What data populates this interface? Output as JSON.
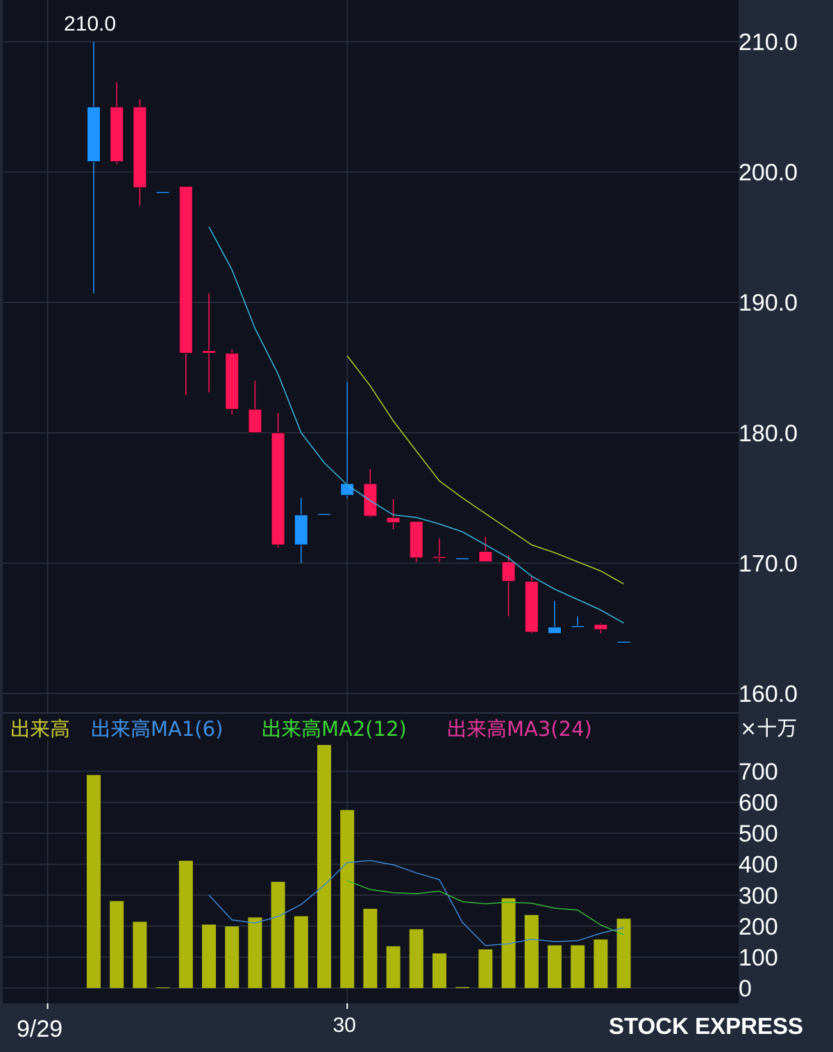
{
  "chart_data": {
    "type": "candlestick",
    "price_axis": {
      "min": 160,
      "max": 210,
      "ticks": [
        210,
        200,
        190,
        180,
        170,
        160
      ],
      "tick_labels": [
        "210.0",
        "200.0",
        "190.0",
        "180.0",
        "170.0",
        "160.0"
      ]
    },
    "high_label": "210.0",
    "x_labels": [
      {
        "index": -2,
        "label": "9/29"
      },
      {
        "index": 11,
        "label": "30"
      }
    ],
    "candles": [
      {
        "o": 200.8,
        "h": 210.0,
        "l": 190.7,
        "c": 205.0
      },
      {
        "o": 205.0,
        "h": 206.9,
        "l": 200.6,
        "c": 200.8
      },
      {
        "o": 205.0,
        "h": 205.6,
        "l": 197.4,
        "c": 198.8
      },
      {
        "o": 198.5,
        "h": 198.5,
        "l": 198.5,
        "c": 198.5
      },
      {
        "o": 198.9,
        "h": 198.9,
        "l": 182.9,
        "c": 186.1
      },
      {
        "o": 186.3,
        "h": 190.7,
        "l": 183.1,
        "c": 186.1
      },
      {
        "o": 186.1,
        "h": 186.4,
        "l": 181.4,
        "c": 181.8
      },
      {
        "o": 181.8,
        "h": 184.0,
        "l": 180.0,
        "c": 180.0
      },
      {
        "o": 180.0,
        "h": 181.5,
        "l": 171.2,
        "c": 171.4
      },
      {
        "o": 171.4,
        "h": 175.0,
        "l": 170.0,
        "c": 173.7
      },
      {
        "o": 173.8,
        "h": 173.8,
        "l": 173.8,
        "c": 173.8
      },
      {
        "o": 175.2,
        "h": 183.9,
        "l": 175.0,
        "c": 176.1
      },
      {
        "o": 176.1,
        "h": 177.2,
        "l": 173.5,
        "c": 173.6
      },
      {
        "o": 173.5,
        "h": 174.9,
        "l": 172.6,
        "c": 173.1
      },
      {
        "o": 173.2,
        "h": 173.2,
        "l": 170.1,
        "c": 170.4
      },
      {
        "o": 170.5,
        "h": 171.9,
        "l": 170.1,
        "c": 170.4
      },
      {
        "o": 170.4,
        "h": 170.4,
        "l": 170.4,
        "c": 170.4
      },
      {
        "o": 170.9,
        "h": 172.0,
        "l": 170.1,
        "c": 170.1
      },
      {
        "o": 170.1,
        "h": 170.6,
        "l": 165.9,
        "c": 168.6
      },
      {
        "o": 168.6,
        "h": 169.0,
        "l": 164.6,
        "c": 164.7
      },
      {
        "o": 164.6,
        "h": 167.1,
        "l": 164.6,
        "c": 165.1
      },
      {
        "o": 165.2,
        "h": 165.9,
        "l": 165.1,
        "c": 165.2
      },
      {
        "o": 165.3,
        "h": 165.4,
        "l": 164.6,
        "c": 164.9
      },
      {
        "o": 164.0,
        "h": 164.0,
        "l": 164.0,
        "c": 164.0
      }
    ],
    "price_ma1": [
      {
        "i": 5,
        "v": 195.8
      },
      {
        "i": 6,
        "v": 192.5
      },
      {
        "i": 7,
        "v": 188.0
      },
      {
        "i": 8,
        "v": 184.5
      },
      {
        "i": 9,
        "v": 180.0
      },
      {
        "i": 10,
        "v": 177.7
      },
      {
        "i": 11,
        "v": 176.0
      },
      {
        "i": 12,
        "v": 174.8
      },
      {
        "i": 13,
        "v": 173.7
      },
      {
        "i": 14,
        "v": 173.5
      },
      {
        "i": 15,
        "v": 173.0
      },
      {
        "i": 16,
        "v": 172.4
      },
      {
        "i": 17,
        "v": 171.4
      },
      {
        "i": 18,
        "v": 170.4
      },
      {
        "i": 19,
        "v": 169.0
      },
      {
        "i": 20,
        "v": 168.0
      },
      {
        "i": 21,
        "v": 167.2
      },
      {
        "i": 22,
        "v": 166.4
      },
      {
        "i": 23,
        "v": 165.4
      }
    ],
    "price_ma2": [
      {
        "i": 11,
        "v": 185.9
      },
      {
        "i": 12,
        "v": 183.6
      },
      {
        "i": 13,
        "v": 180.9
      },
      {
        "i": 14,
        "v": 178.6
      },
      {
        "i": 15,
        "v": 176.3
      },
      {
        "i": 16,
        "v": 175.0
      },
      {
        "i": 17,
        "v": 173.8
      },
      {
        "i": 18,
        "v": 172.6
      },
      {
        "i": 19,
        "v": 171.4
      },
      {
        "i": 20,
        "v": 170.8
      },
      {
        "i": 21,
        "v": 170.1
      },
      {
        "i": 22,
        "v": 169.4
      },
      {
        "i": 23,
        "v": 168.4
      }
    ],
    "volume_axis": {
      "min": 0,
      "max": 700,
      "ticks": [
        700,
        600,
        500,
        400,
        300,
        200,
        100,
        0
      ],
      "tick_labels": [
        "700",
        "600",
        "500",
        "400",
        "300",
        "200",
        "100",
        "0"
      ],
      "unit_label": "×十万"
    },
    "volume_legend": [
      "出来高",
      "出来高MA1(6)",
      "出来高MA2(12)",
      "出来高MA3(24)"
    ],
    "volume": [
      688,
      281,
      214,
      2,
      411,
      205,
      199,
      228,
      343,
      232,
      785,
      575,
      256,
      135,
      190,
      112,
      3,
      125,
      290,
      236,
      138,
      138,
      157,
      224
    ],
    "volume_ma1": [
      {
        "i": 5,
        "v": 300
      },
      {
        "i": 6,
        "v": 220
      },
      {
        "i": 7,
        "v": 210
      },
      {
        "i": 8,
        "v": 231
      },
      {
        "i": 9,
        "v": 270
      },
      {
        "i": 10,
        "v": 332
      },
      {
        "i": 11,
        "v": 405
      },
      {
        "i": 12,
        "v": 412
      },
      {
        "i": 13,
        "v": 398
      },
      {
        "i": 14,
        "v": 372
      },
      {
        "i": 15,
        "v": 350
      },
      {
        "i": 16,
        "v": 212
      },
      {
        "i": 17,
        "v": 137
      },
      {
        "i": 18,
        "v": 143
      },
      {
        "i": 19,
        "v": 158
      },
      {
        "i": 20,
        "v": 150
      },
      {
        "i": 21,
        "v": 153
      },
      {
        "i": 22,
        "v": 177
      },
      {
        "i": 23,
        "v": 195
      }
    ],
    "volume_ma2": [
      {
        "i": 11,
        "v": 347
      },
      {
        "i": 12,
        "v": 318
      },
      {
        "i": 13,
        "v": 308
      },
      {
        "i": 14,
        "v": 305
      },
      {
        "i": 15,
        "v": 313
      },
      {
        "i": 16,
        "v": 279
      },
      {
        "i": 17,
        "v": 272
      },
      {
        "i": 18,
        "v": 277
      },
      {
        "i": 19,
        "v": 274
      },
      {
        "i": 20,
        "v": 258
      },
      {
        "i": 21,
        "v": 252
      },
      {
        "i": 22,
        "v": 204
      },
      {
        "i": 23,
        "v": 172
      }
    ],
    "colors": {
      "background": "#10121e",
      "frame": "#222a3a",
      "grid": "#2c3343",
      "up": "#1f95ff",
      "down": "#ff1656",
      "price_ma1": "#3ab0d6",
      "price_ma2": "#a7c72d",
      "volume_bar": "#adb60b",
      "volume_ma1": "#3f86d2",
      "volume_ma2": "#39b73b",
      "legend_volume": "#c2c531",
      "legend_ma1": "#3f8fe2",
      "legend_ma2": "#3cd535",
      "legend_ma3": "#e0379a"
    },
    "brand": "STOCK EXPRESS"
  }
}
